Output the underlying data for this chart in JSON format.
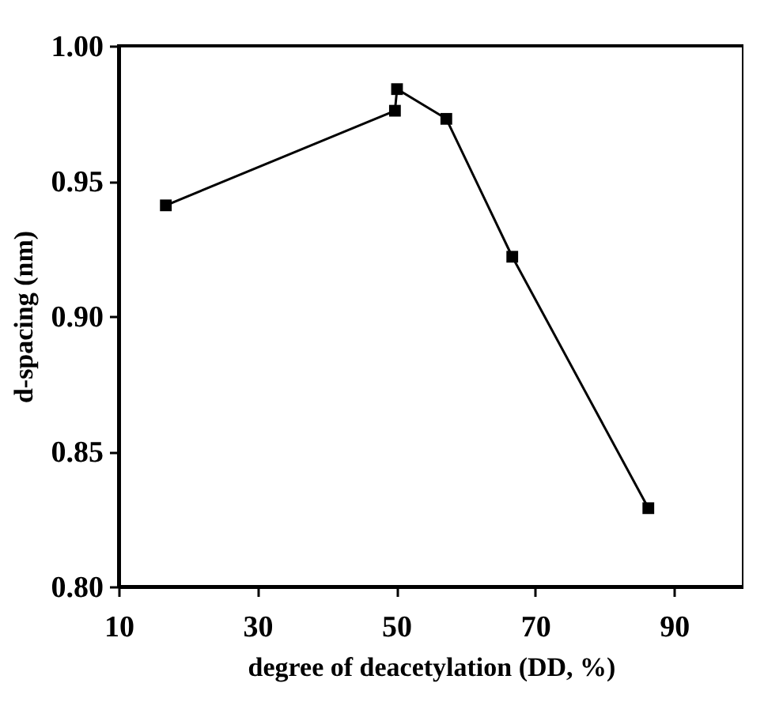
{
  "chart_data": {
    "type": "line",
    "xlabel": "degree of deacetylation (DD, %)",
    "ylabel": "d-spacing (nm)",
    "x": [
      16.8,
      49.8,
      50.1,
      57.2,
      66.7,
      86.3
    ],
    "series": [
      {
        "color": "#000000",
        "values": [
          0.941,
          0.976,
          0.984,
          0.973,
          0.922,
          0.829
        ]
      }
    ],
    "xlim": [
      10,
      100
    ],
    "xticks": [
      10,
      30,
      50,
      70,
      90
    ],
    "ylim": [
      0.8,
      1.0
    ],
    "yticks": [
      {
        "value": 0.8,
        "label": "0.80"
      },
      {
        "value": 0.85,
        "label": "0.85"
      },
      {
        "value": 0.9,
        "label": "0.90"
      },
      {
        "value": 0.95,
        "label": "0.95"
      },
      {
        "value": 1.0,
        "label": "1.00"
      }
    ],
    "marker": "square",
    "line_style": "solid",
    "grid": false
  }
}
